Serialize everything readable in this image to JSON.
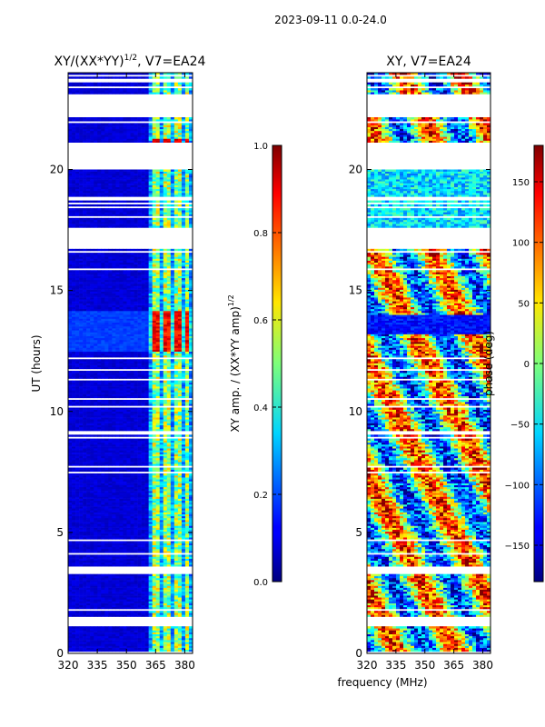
{
  "figure": {
    "suptitle": "2023-09-11 0.0-24.0",
    "xlabel": "frequency (MHz)"
  },
  "chart_data": [
    {
      "type": "heatmap",
      "title_main": "XY/(XX*YY)",
      "title_exp": "1/2",
      "title_tail": ", V7=EA24",
      "xlabel": "",
      "ylabel": "UT (hours)",
      "xlim": [
        320,
        384
      ],
      "ylim": [
        0,
        24
      ],
      "xticks": [
        320,
        335,
        350,
        365,
        380
      ],
      "yticks": [
        0,
        5,
        10,
        15,
        20
      ],
      "colormap": "jet",
      "bright_channel_mhz": [
        365,
        371,
        376,
        381
      ],
      "gap_hours": [
        [
          1.1,
          1.5
        ],
        [
          3.3,
          3.6
        ],
        [
          16.7,
          17.6
        ],
        [
          20.1,
          21.1
        ],
        [
          22.2,
          23.1
        ]
      ],
      "colorbar": {
        "label_main": "XY amp. / (XX*YY amp)",
        "label_exp": "1/2",
        "range": [
          0.0,
          1.0
        ],
        "ticks": [
          0.0,
          0.2,
          0.4,
          0.6,
          0.8,
          1.0
        ],
        "tick_labels": [
          "0.0",
          "0.2",
          "0.4",
          "0.6",
          "0.8",
          "1.0"
        ]
      }
    },
    {
      "type": "heatmap",
      "title": "XY, V7=EA24",
      "xlim": [
        320,
        384
      ],
      "ylim": [
        0,
        24
      ],
      "xticks": [
        320,
        335,
        350,
        365,
        380
      ],
      "yticks": [
        0,
        5,
        10,
        15,
        20
      ],
      "colormap": "jet",
      "gap_hours": [
        [
          1.1,
          1.5
        ],
        [
          3.3,
          3.6
        ],
        [
          16.7,
          17.6
        ],
        [
          20.1,
          21.1
        ],
        [
          22.2,
          23.1
        ]
      ],
      "colorbar": {
        "label": "phase (deg)",
        "range": [
          -180,
          180
        ],
        "ticks": [
          -150,
          -100,
          -50,
          0,
          50,
          100,
          150
        ],
        "tick_labels": [
          "−150",
          "−100",
          "−50",
          "0",
          "50",
          "100",
          "150"
        ]
      }
    }
  ]
}
